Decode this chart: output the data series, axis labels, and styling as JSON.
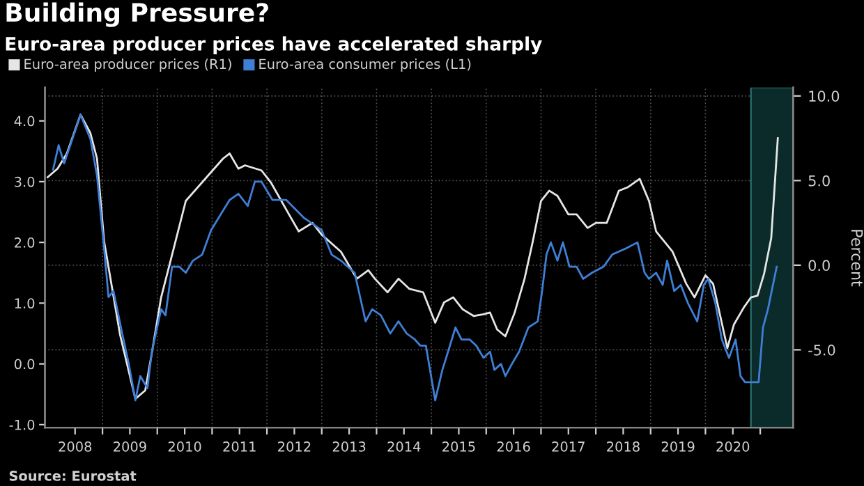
{
  "chart_data": {
    "type": "line",
    "title": "Building Pressure?",
    "subtitle": "Euro-area producer prices have accelerated sharply",
    "y2label": "Percent",
    "series": [
      {
        "name": "Euro-area producer prices (R1)",
        "color": "#e6e6e6",
        "axis": "y2",
        "x": [
          2008.0,
          2008.18,
          2008.35,
          2008.6,
          2008.78,
          2008.9,
          2009.03,
          2009.32,
          2009.6,
          2009.78,
          2009.9,
          2010.07,
          2010.3,
          2010.52,
          2010.9,
          2011.2,
          2011.32,
          2011.48,
          2011.6,
          2011.9,
          2012.07,
          2012.42,
          2012.58,
          2012.83,
          2013.0,
          2013.35,
          2013.64,
          2013.85,
          2013.97,
          2014.2,
          2014.4,
          2014.6,
          2014.85,
          2015.07,
          2015.23,
          2015.4,
          2015.57,
          2015.77,
          2015.95,
          2016.07,
          2016.2,
          2016.35,
          2016.52,
          2016.7,
          2016.85,
          2017.0,
          2017.15,
          2017.3,
          2017.5,
          2017.65,
          2017.85,
          2018.0,
          2018.2,
          2018.42,
          2018.58,
          2018.8,
          2018.97,
          2019.1,
          2019.4,
          2019.65,
          2019.8,
          2020.0,
          2020.14,
          2020.27,
          2020.4,
          2020.52,
          2020.7,
          2020.83,
          2020.95,
          2021.07,
          2021.2,
          2021.32
        ],
        "values": [
          5.2,
          5.7,
          6.6,
          8.9,
          7.8,
          6.3,
          1.4,
          -4.1,
          -7.9,
          -7.4,
          -5.2,
          -1.9,
          1.0,
          3.8,
          5.2,
          6.3,
          6.6,
          5.7,
          5.9,
          5.6,
          4.9,
          2.9,
          2.0,
          2.5,
          1.8,
          0.8,
          -0.8,
          -0.3,
          -0.8,
          -1.6,
          -0.8,
          -1.4,
          -1.6,
          -3.4,
          -2.2,
          -1.9,
          -2.6,
          -3.0,
          -2.9,
          -2.8,
          -3.8,
          -4.2,
          -2.8,
          -0.8,
          1.4,
          3.8,
          4.4,
          4.1,
          3.0,
          3.0,
          2.2,
          2.5,
          2.5,
          4.4,
          4.6,
          5.1,
          3.8,
          2.0,
          0.8,
          -1.1,
          -1.9,
          -0.6,
          -1.1,
          -3.0,
          -4.9,
          -3.5,
          -2.5,
          -1.9,
          -1.8,
          -0.5,
          1.6,
          7.5
        ]
      },
      {
        "name": "Euro-area consumer prices (L1)",
        "color": "#3f7fd6",
        "x": [
          2008.1,
          2008.2,
          2008.3,
          2008.6,
          2008.78,
          2008.9,
          2009.03,
          2009.11,
          2009.2,
          2009.36,
          2009.48,
          2009.6,
          2009.69,
          2009.82,
          2009.9,
          2010.07,
          2010.15,
          2010.27,
          2010.4,
          2010.52,
          2010.65,
          2010.82,
          2010.98,
          2011.32,
          2011.48,
          2011.65,
          2011.78,
          2011.9,
          2012.1,
          2012.35,
          2012.68,
          2013.0,
          2013.18,
          2013.35,
          2013.6,
          2013.8,
          2013.92,
          2014.08,
          2014.25,
          2014.4,
          2014.55,
          2014.7,
          2014.8,
          2014.9,
          2015.07,
          2015.2,
          2015.27,
          2015.44,
          2015.55,
          2015.7,
          2015.82,
          2015.95,
          2016.07,
          2016.15,
          2016.27,
          2016.35,
          2016.47,
          2016.6,
          2016.77,
          2016.94,
          2017.02,
          2017.1,
          2017.18,
          2017.3,
          2017.4,
          2017.52,
          2017.65,
          2017.77,
          2017.93,
          2018.14,
          2018.3,
          2018.55,
          2018.76,
          2018.89,
          2018.97,
          2019.1,
          2019.22,
          2019.3,
          2019.43,
          2019.55,
          2019.68,
          2019.85,
          2019.97,
          2020.05,
          2020.18,
          2020.3,
          2020.43,
          2020.55,
          2020.64,
          2020.72,
          2020.97,
          2021.05,
          2021.14,
          2021.3
        ],
        "values": [
          3.2,
          3.6,
          3.3,
          4.1,
          3.7,
          3.1,
          1.9,
          1.1,
          1.2,
          0.5,
          0.0,
          -0.6,
          -0.2,
          -0.4,
          0.2,
          0.9,
          0.8,
          1.6,
          1.6,
          1.5,
          1.7,
          1.8,
          2.2,
          2.7,
          2.8,
          2.6,
          3.0,
          3.0,
          2.7,
          2.7,
          2.4,
          2.2,
          1.8,
          1.7,
          1.5,
          0.7,
          0.9,
          0.8,
          0.5,
          0.7,
          0.5,
          0.4,
          0.3,
          0.3,
          -0.6,
          -0.1,
          0.1,
          0.6,
          0.4,
          0.4,
          0.3,
          0.1,
          0.2,
          -0.1,
          0.0,
          -0.2,
          0.0,
          0.2,
          0.6,
          0.7,
          1.2,
          1.8,
          2.0,
          1.7,
          2.0,
          1.6,
          1.6,
          1.4,
          1.5,
          1.6,
          1.8,
          1.9,
          2.0,
          1.5,
          1.4,
          1.5,
          1.3,
          1.7,
          1.2,
          1.3,
          1.0,
          0.7,
          1.3,
          1.4,
          1.0,
          0.4,
          0.1,
          0.4,
          -0.2,
          -0.3,
          -0.3,
          0.6,
          0.9,
          1.6
        ]
      }
    ],
    "xlim": [
      2007.95,
      2021.6
    ],
    "xticks": [
      {
        "value": 2008.5,
        "label": "2008"
      },
      {
        "value": 2009,
        "label": null
      },
      {
        "value": 2009.5,
        "label": "2009"
      },
      {
        "value": 2010,
        "label": null
      },
      {
        "value": 2010.5,
        "label": "2010"
      },
      {
        "value": 2011,
        "label": null
      },
      {
        "value": 2011.5,
        "label": "2011"
      },
      {
        "value": 2012,
        "label": null
      },
      {
        "value": 2012.5,
        "label": "2012"
      },
      {
        "value": 2013,
        "label": null
      },
      {
        "value": 2013.5,
        "label": "2013"
      },
      {
        "value": 2014,
        "label": null
      },
      {
        "value": 2014.5,
        "label": "2014"
      },
      {
        "value": 2015,
        "label": null
      },
      {
        "value": 2015.5,
        "label": "2015"
      },
      {
        "value": 2016,
        "label": null
      },
      {
        "value": 2016.5,
        "label": "2016"
      },
      {
        "value": 2017,
        "label": null
      },
      {
        "value": 2017.5,
        "label": "2017"
      },
      {
        "value": 2018,
        "label": null
      },
      {
        "value": 2018.5,
        "label": "2018"
      },
      {
        "value": 2019,
        "label": null
      },
      {
        "value": 2019.5,
        "label": "2019"
      },
      {
        "value": 2020,
        "label": null
      },
      {
        "value": 2020.5,
        "label": "2020"
      },
      {
        "value": 2021,
        "label": null
      }
    ],
    "ylim": [
      -1.05,
      4.55
    ],
    "yticks": [
      {
        "value": -1,
        "label": "-1.0"
      },
      {
        "value": 0,
        "label": "0.0"
      },
      {
        "value": 1,
        "label": "1.0"
      },
      {
        "value": 2,
        "label": "2.0"
      },
      {
        "value": 3,
        "label": "3.0"
      },
      {
        "value": 4,
        "label": "4.0"
      }
    ],
    "y2lim": [
      -9.6,
      10.5
    ],
    "y2ticks": [
      {
        "value": -5,
        "label": "-5.0"
      },
      {
        "value": 0,
        "label": "0.0"
      },
      {
        "value": 5,
        "label": "5.0"
      },
      {
        "value": 10,
        "label": "10.0"
      }
    ],
    "bands": [
      {
        "axis": "x",
        "from": 2020.83,
        "to": 2021.6,
        "color": "#0b2b2b"
      }
    ],
    "grid": true,
    "legend": "top",
    "annotations": [
      "Source: Eurostat"
    ]
  }
}
